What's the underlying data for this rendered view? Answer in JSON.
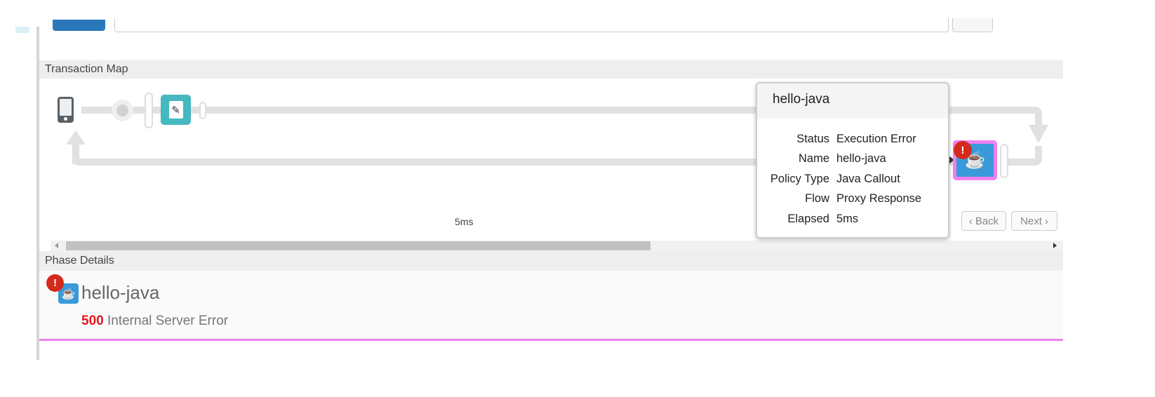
{
  "transaction_map": {
    "title": "Transaction Map",
    "elapsed_label": "5ms",
    "back_label": "Back",
    "next_label": "Next",
    "tooltip": {
      "title": "hello-java",
      "rows": [
        {
          "key": "Status",
          "value": "Execution Error"
        },
        {
          "key": "Name",
          "value": "hello-java"
        },
        {
          "key": "Policy Type",
          "value": "Java Callout"
        },
        {
          "key": "Flow",
          "value": "Proxy Response"
        },
        {
          "key": "Elapsed",
          "value": "5ms"
        }
      ]
    }
  },
  "phase_details": {
    "title": "Phase Details",
    "policy_name": "hello-java",
    "status_code": "500",
    "status_text": "Internal Server Error"
  },
  "colors": {
    "accent": "#2a77b9",
    "error": "#d42a1c",
    "highlight": "#f080f0",
    "teal": "#45b8c0",
    "java": "#3a9ad9"
  }
}
